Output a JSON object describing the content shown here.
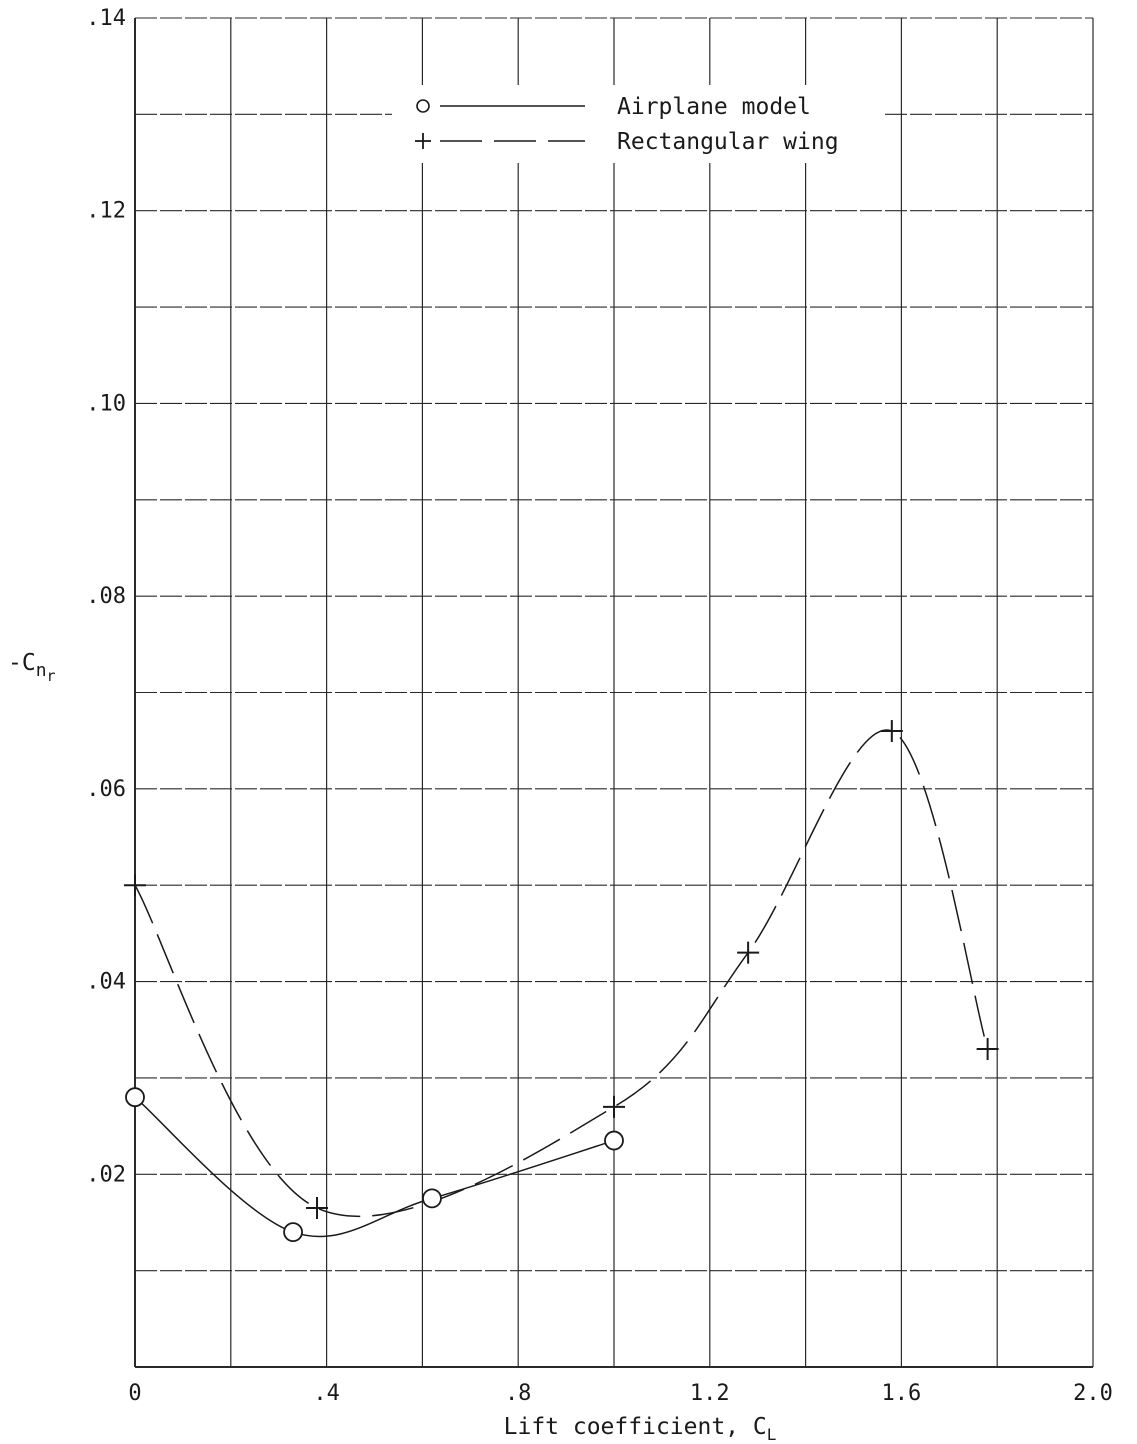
{
  "chart_data": {
    "type": "line",
    "xlabel": "Lift coefficient, C",
    "xlabel_sub": "L",
    "ylabel": "-C",
    "ylabel_sub": "n",
    "ylabel_subsub": "r",
    "xlim": [
      0,
      2.0
    ],
    "ylim": [
      0,
      0.14
    ],
    "x_ticks": [
      0,
      0.4,
      0.8,
      1.2,
      1.6,
      2.0
    ],
    "x_tick_labels": [
      "0",
      ".4",
      ".8",
      "1.2",
      "1.6",
      "2.0"
    ],
    "y_ticks": [
      0.02,
      0.04,
      0.06,
      0.08,
      0.1,
      0.12,
      0.14
    ],
    "y_tick_labels": [
      ".02",
      ".04",
      ".06",
      ".08",
      ".10",
      ".12",
      ".14"
    ],
    "grid": true,
    "legend_position": "top-center",
    "series": [
      {
        "name": "Airplane model",
        "marker": "circle",
        "line_style": "solid",
        "points": [
          {
            "x": 0.0,
            "y": 0.028
          },
          {
            "x": 0.33,
            "y": 0.014
          },
          {
            "x": 0.62,
            "y": 0.0175
          },
          {
            "x": 1.0,
            "y": 0.0235
          }
        ]
      },
      {
        "name": "Rectangular wing",
        "marker": "plus",
        "line_style": "long-dash",
        "points": [
          {
            "x": 0.0,
            "y": 0.05
          },
          {
            "x": 0.38,
            "y": 0.0165
          },
          {
            "x": 1.0,
            "y": 0.027
          },
          {
            "x": 1.28,
            "y": 0.043
          },
          {
            "x": 1.58,
            "y": 0.066
          },
          {
            "x": 1.78,
            "y": 0.033
          }
        ]
      }
    ]
  },
  "legend": {
    "items": [
      {
        "symbol": "o",
        "label": "Airplane model"
      },
      {
        "symbol": "+",
        "label": "Rectangular wing"
      }
    ]
  },
  "colors": {
    "ink": "#1a1a1a",
    "grid": "#2a2a2a",
    "background": "#ffffff"
  }
}
